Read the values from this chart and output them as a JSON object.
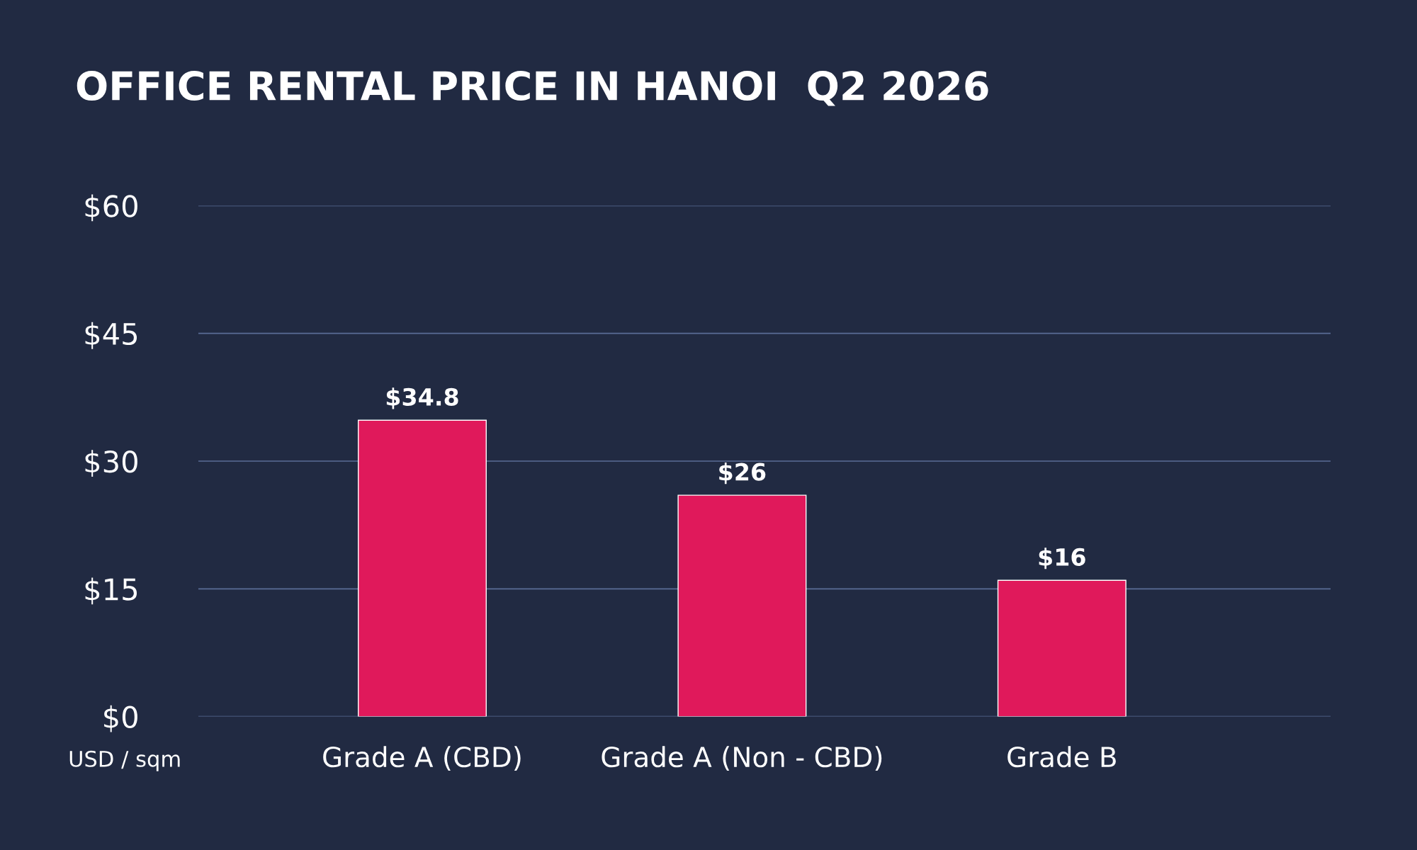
{
  "chart_data": {
    "type": "bar",
    "title": "OFFICE RENTAL PRICE IN HANOI  Q2 2026",
    "ylabel": "USD / sqm",
    "categories": [
      "Grade A (CBD)",
      "Grade A (Non - CBD)",
      "Grade B"
    ],
    "values": [
      34.8,
      26,
      16
    ],
    "value_labels": [
      "$34.8",
      "$26",
      "$16"
    ],
    "color": "#e0195b",
    "ylim": [
      0,
      60
    ],
    "yticks": [
      {
        "value": 0,
        "label": "$0"
      },
      {
        "value": 15,
        "label": "$15"
      },
      {
        "value": 30,
        "label": "$30"
      },
      {
        "value": 45,
        "label": "$45"
      },
      {
        "value": 60,
        "label": "$60"
      }
    ],
    "grid": "y",
    "legend": false
  }
}
